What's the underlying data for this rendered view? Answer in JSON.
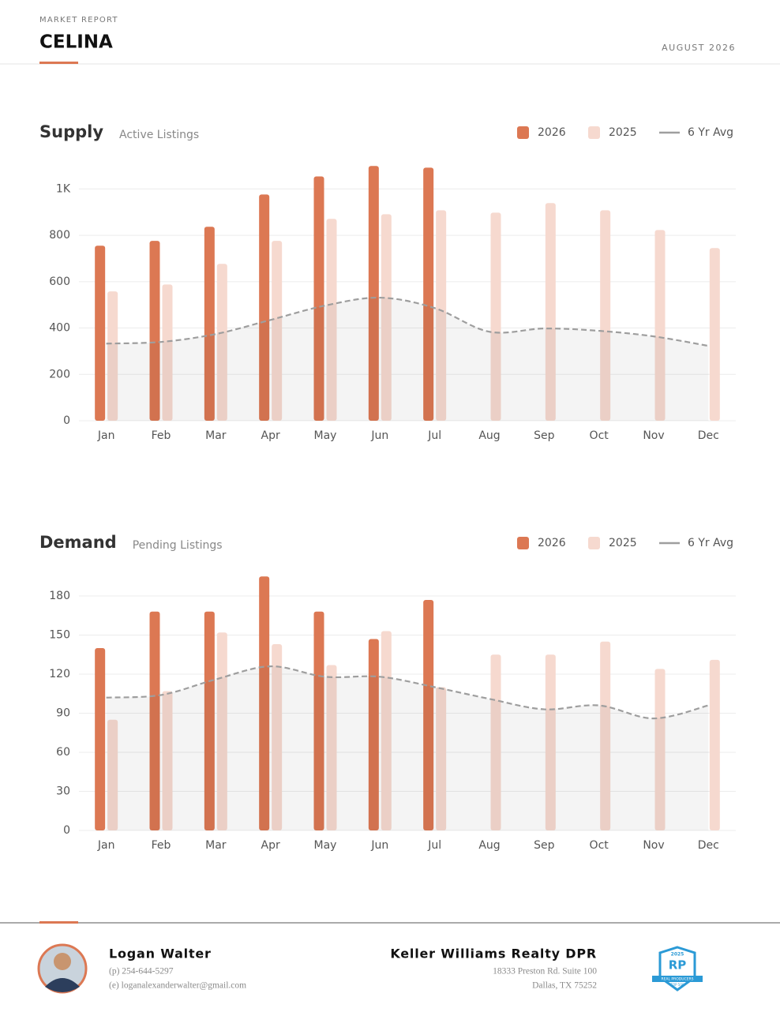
{
  "header": {
    "eyebrow": "MARKET REPORT",
    "title": "CELINA",
    "date": "AUGUST 2026"
  },
  "chart_data": [
    {
      "type": "bar",
      "title": "Supply",
      "subtitle": "Active Listings",
      "categories": [
        "Jan",
        "Feb",
        "Mar",
        "Apr",
        "May",
        "Jun",
        "Jul",
        "Aug",
        "Sep",
        "Oct",
        "Nov",
        "Dec"
      ],
      "series": [
        {
          "name": "2026",
          "color": "#dc7853",
          "values": [
            755,
            776,
            837,
            976,
            1054,
            1099,
            1092,
            null,
            null,
            null,
            null,
            null
          ]
        },
        {
          "name": "2025",
          "color": "#f6d9cf",
          "values": [
            558,
            588,
            677,
            776,
            871,
            891,
            908,
            898,
            939,
            908,
            823,
            745
          ]
        },
        {
          "name": "6 Yr Avg",
          "type": "line",
          "color": "#9e9e9e",
          "values": [
            333,
            340,
            374,
            435,
            497,
            531,
            486,
            384,
            398,
            388,
            364,
            323
          ]
        }
      ],
      "ylim": [
        0,
        1100
      ],
      "yticks": [
        0,
        200,
        400,
        600,
        800,
        {
          "value": 1000,
          "label": "1K"
        }
      ],
      "grid": true
    },
    {
      "type": "bar",
      "title": "Demand",
      "subtitle": "Pending Listings",
      "categories": [
        "Jan",
        "Feb",
        "Mar",
        "Apr",
        "May",
        "Jun",
        "Jul",
        "Aug",
        "Sep",
        "Oct",
        "Nov",
        "Dec"
      ],
      "series": [
        {
          "name": "2026",
          "color": "#dc7853",
          "values": [
            140,
            168,
            168,
            195,
            168,
            147,
            177,
            null,
            null,
            null,
            null,
            null
          ]
        },
        {
          "name": "2025",
          "color": "#f6d9cf",
          "values": [
            85,
            107,
            152,
            143,
            127,
            153,
            110,
            135,
            135,
            145,
            124,
            131
          ]
        },
        {
          "name": "6 Yr Avg",
          "type": "line",
          "color": "#9e9e9e",
          "values": [
            102,
            104,
            116,
            126,
            118,
            118,
            110,
            101,
            93,
            96,
            86,
            96
          ]
        }
      ],
      "ylim": [
        0,
        200
      ],
      "yticks": [
        0,
        30,
        60,
        90,
        120,
        150,
        180
      ],
      "grid": true
    }
  ],
  "footer": {
    "agent": {
      "name": "Logan Walter",
      "phone": "(p) 254-644-5297",
      "email": "(e) loganalexanderwalter@gmail.com"
    },
    "brokerage": {
      "name": "Keller Williams Realty DPR",
      "address1": "18333 Preston Rd. Suite 100",
      "address2": "Dallas, TX 75252"
    },
    "badge": {
      "year": "2025",
      "mark": "RP",
      "line1": "REAL PRODUCERS",
      "line2": "TOP 500"
    }
  }
}
